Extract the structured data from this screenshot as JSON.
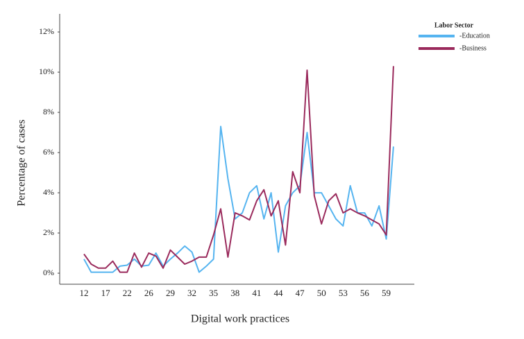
{
  "chart_data": {
    "type": "line",
    "x_label": "Digital work practices",
    "y_label": "Percentage of cases",
    "legend_title": "Labor Sector",
    "legend": "right",
    "categories": [
      "12",
      null,
      null,
      "17",
      null,
      null,
      "22",
      null,
      null,
      "26",
      null,
      null,
      "29",
      null,
      null,
      "32",
      null,
      null,
      "35",
      null,
      null,
      "38",
      null,
      null,
      "41",
      null,
      null,
      "44",
      null,
      null,
      "47",
      null,
      null,
      "50",
      null,
      null,
      "53",
      null,
      null,
      "56",
      null,
      null,
      "59",
      null
    ],
    "series": [
      {
        "name": "-Education",
        "color": "#55b4f0",
        "values": [
          0.7,
          0.05,
          0.05,
          0.05,
          0.05,
          0.35,
          0.4,
          0.7,
          0.35,
          0.4,
          1.0,
          0.35,
          0.7,
          1.0,
          1.35,
          1.05,
          0.05,
          0.35,
          0.7,
          7.3,
          4.7,
          2.7,
          3.0,
          4.0,
          4.35,
          2.7,
          4.0,
          1.05,
          3.35,
          4.0,
          4.35,
          7.0,
          4.0,
          4.0,
          3.35,
          2.7,
          2.35,
          4.35,
          3.0,
          3.0,
          2.35,
          3.35,
          1.7,
          6.3
        ]
      },
      {
        "name": "-Business",
        "color": "#9a2a5c",
        "values": [
          0.95,
          0.45,
          0.25,
          0.25,
          0.6,
          0.05,
          0.05,
          1.0,
          0.3,
          1.0,
          0.85,
          0.25,
          1.15,
          0.8,
          0.45,
          0.6,
          0.8,
          0.8,
          1.9,
          3.2,
          0.8,
          3.0,
          2.85,
          2.65,
          3.6,
          4.15,
          2.85,
          3.6,
          1.4,
          5.05,
          4.0,
          10.1,
          3.85,
          2.45,
          3.6,
          3.95,
          3.0,
          3.2,
          3.0,
          2.85,
          2.65,
          2.45,
          1.9,
          10.3
        ]
      }
    ],
    "ylim": [
      -0.55,
      12.9
    ],
    "yticks": [
      {
        "value": 0,
        "label": "0%"
      },
      {
        "value": 2,
        "label": "2%"
      },
      {
        "value": 4,
        "label": "4%"
      },
      {
        "value": 6,
        "label": "6%"
      },
      {
        "value": 8,
        "label": "8%"
      },
      {
        "value": 10,
        "label": "10%"
      },
      {
        "value": 12,
        "label": "12%"
      }
    ]
  }
}
